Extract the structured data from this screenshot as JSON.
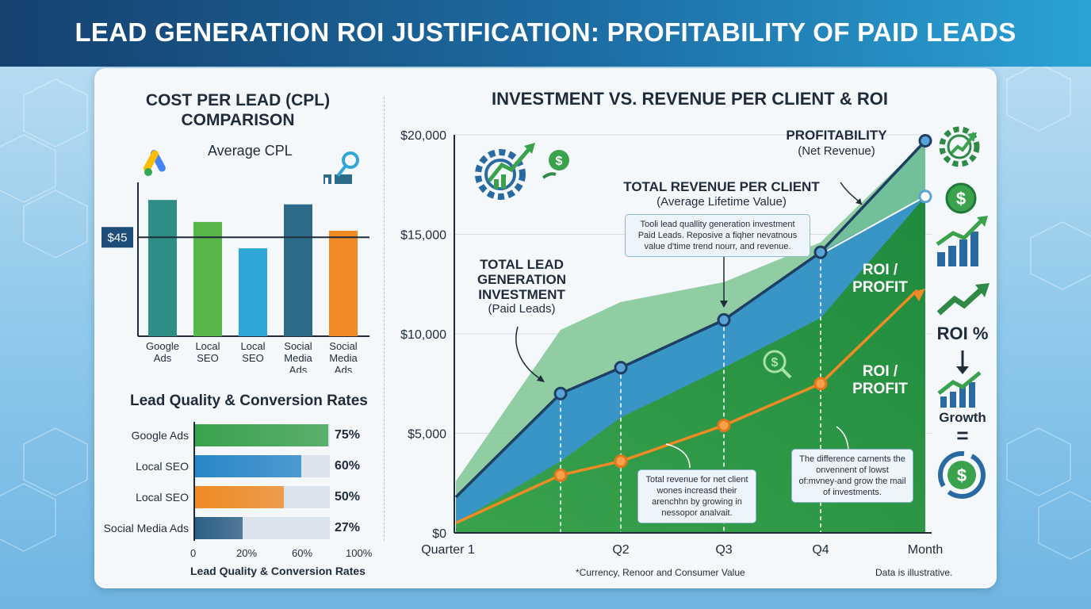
{
  "header": {
    "title": "LEAD GENERATION ROI JUSTIFICATION: PROFITABILITY OF PAID LEADS"
  },
  "colors": {
    "banner": "#15416f",
    "investment": "#2f7fc0",
    "revenue": "#1e4d78",
    "profit": "#2e9e4a",
    "roi_line": "#f08a24"
  },
  "chart_data": [
    {
      "type": "bar",
      "title": "COST PER LEAD (CPL) COMPARISON",
      "subtitle": "Average CPL",
      "categories": [
        "Google Ads",
        "Local SEO",
        "Local SEO",
        "Social Media Ads",
        "Social Media Ads"
      ],
      "values": [
        62,
        52,
        40,
        60,
        48
      ],
      "ylim": [
        0,
        70
      ],
      "reference_line": {
        "label": "$45",
        "value": 45
      },
      "colors": [
        "#2f8f86",
        "#58b548",
        "#2fa7d6",
        "#2d6b8a",
        "#f08a24"
      ]
    },
    {
      "type": "bar",
      "orientation": "horizontal",
      "title": "Lead Quality & Conversion Rates",
      "xlabel": "Lead Quality & Conversion Rates",
      "categories": [
        "Google Ads",
        "Local SEO",
        "Local SEO",
        "Social Media Ads"
      ],
      "values": [
        75,
        60,
        50,
        27
      ],
      "value_labels": [
        "75%",
        "60%",
        "50%",
        "27%"
      ],
      "xticks": [
        "0",
        "20%",
        "60%",
        "100%"
      ],
      "colors": [
        "#3aa24c",
        "#2a86c8",
        "#f08a24",
        "#2d5f86"
      ]
    },
    {
      "type": "line",
      "title": "INVESTMENT VS. REVENUE PER CLIENT & ROI",
      "x": [
        "Quarter 1",
        "",
        "Q2",
        "Q3",
        "Q4",
        "Month"
      ],
      "yticks": [
        "$0",
        "$5,000",
        "$10,000",
        "$15,000",
        "$20,000"
      ],
      "ylim": [
        0,
        20000
      ],
      "series": [
        {
          "name": "TOTAL LEAD GENERATION INVESTMENT",
          "values": [
            1800,
            7000,
            8300,
            10700,
            14100,
            19700
          ]
        },
        {
          "name": "TOTAL REVENUE PER CLIENT",
          "values": [
            1000,
            6500,
            7700,
            10000,
            14000,
            16900
          ]
        },
        {
          "name": "ROI / PROFIT",
          "values": [
            500,
            2900,
            3600,
            5400,
            7500,
            12200
          ]
        }
      ],
      "annotations": {
        "profitability_title": "PROFITABILITY",
        "profitability_sub": "(Net Revenue)",
        "revenue_title": "TOTAL REVENUE PER CLIENT",
        "revenue_sub": "(Average Lifetime Value)",
        "revenue_note": "Tooli lead quallity generation investment Paid Leads. Reposive a fiqher nevatnous value d'time trend nourr, and revenue.",
        "investment_title_1": "TOTAL LEAD",
        "investment_title_2": "GENERATION",
        "investment_title_3": "INVESTMENT",
        "investment_sub": "(Paid Leads)",
        "roi_profit_1_a": "ROI /",
        "roi_profit_1_b": "PROFIT",
        "roi_profit_2_a": "ROI /",
        "roi_profit_2_b": "PROFIT",
        "mid_note": "Total revenue for net client wones increasd their arenchhn by growing in nessopor analvait.",
        "right_note": "The difference carnents the onvennent of lowst of:mvney-and grow the mail of investments."
      },
      "footnote": "*Currency, Renoor and Consumer Value",
      "illustrative_note": "Data is illustrative."
    }
  ],
  "side_panel": {
    "roi_label": "ROI %",
    "growth_label": "Growth",
    "equals": "="
  }
}
